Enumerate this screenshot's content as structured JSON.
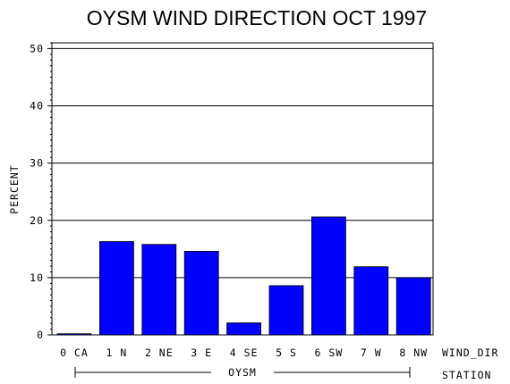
{
  "chart_data": {
    "type": "bar",
    "title": "OYSM WIND DIRECTION OCT 1997",
    "ylabel": "PERCENT",
    "xlabel": "WIND_DIR",
    "group_label": "STATION",
    "group_name": "OYSM",
    "categories": [
      "0 CA",
      "1 N",
      "2 NE",
      "3 E",
      "4 SE",
      "5 S",
      "6 SW",
      "7 W",
      "8 NW"
    ],
    "values": [
      0.2,
      16.3,
      15.8,
      14.6,
      2.1,
      8.6,
      20.6,
      11.9,
      10.0
    ],
    "ylim": [
      0,
      51
    ],
    "yticks": [
      0,
      10,
      20,
      30,
      40,
      50
    ],
    "grid": true,
    "colors": {
      "bar": "#0000ff",
      "axis": "#000000",
      "background": "#ffffff"
    }
  }
}
